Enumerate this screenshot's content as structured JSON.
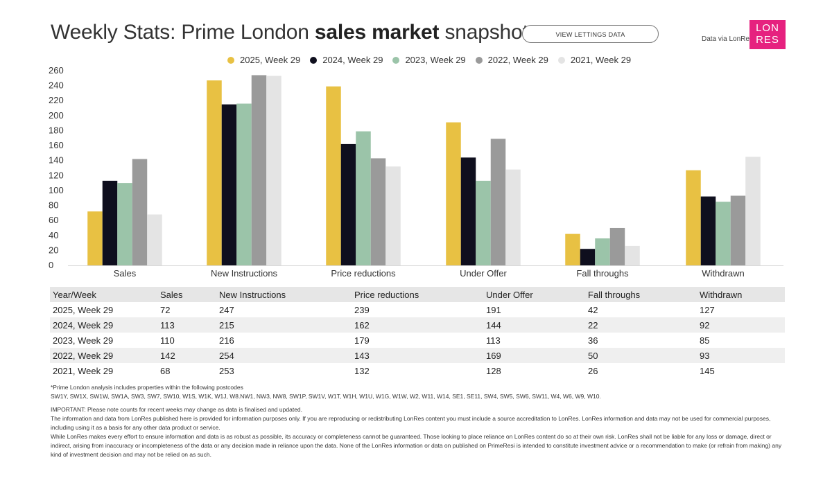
{
  "header": {
    "title_pre": "Weekly Stats: Prime London ",
    "title_bold": "sales market",
    "title_post": " snapshot",
    "view_button": "VIEW LETTINGS DATA",
    "data_via": "Data via LonRes",
    "logo_line1": "LON",
    "logo_line2": "RES"
  },
  "colors": {
    "brand": "#e6217f"
  },
  "chart_data": {
    "type": "bar",
    "categories": [
      "Sales",
      "New Instructions",
      "Price reductions",
      "Under Offer",
      "Fall throughs",
      "Withdrawn"
    ],
    "series": [
      {
        "name": "2025, Week 29",
        "color": "#e8c143",
        "values": [
          72,
          247,
          239,
          191,
          42,
          127
        ]
      },
      {
        "name": "2024, Week 29",
        "color": "#0f0f1e",
        "values": [
          113,
          215,
          162,
          144,
          22,
          92
        ]
      },
      {
        "name": "2023, Week 29",
        "color": "#9bc4a9",
        "values": [
          110,
          216,
          179,
          113,
          36,
          85
        ]
      },
      {
        "name": "2022, Week 29",
        "color": "#9a9a9a",
        "values": [
          142,
          254,
          143,
          169,
          50,
          93
        ]
      },
      {
        "name": "2021, Week 29",
        "color": "#e4e4e4",
        "values": [
          68,
          253,
          132,
          128,
          26,
          145
        ]
      }
    ],
    "yticks": [
      0,
      20,
      40,
      60,
      80,
      100,
      120,
      140,
      160,
      180,
      200,
      220,
      240,
      260
    ],
    "ylim": [
      0,
      260
    ],
    "grid": false,
    "legend": "top"
  },
  "table": {
    "headers": [
      "Year/Week",
      "Sales",
      "New Instructions",
      "Price reductions",
      "Under Offer",
      "Fall throughs",
      "Withdrawn"
    ],
    "rows": [
      [
        "2025, Week 29",
        "72",
        "247",
        "239",
        "191",
        "42",
        "127"
      ],
      [
        "2024, Week 29",
        "113",
        "215",
        "162",
        "144",
        "22",
        "92"
      ],
      [
        "2023, Week 29",
        "110",
        "216",
        "179",
        "113",
        "36",
        "85"
      ],
      [
        "2022, Week 29",
        "142",
        "254",
        "143",
        "169",
        "50",
        "93"
      ],
      [
        "2021, Week 29",
        "68",
        "253",
        "132",
        "128",
        "26",
        "145"
      ]
    ]
  },
  "notes": {
    "postcode_intro": "*Prime London analysis includes properties within the following postcodes",
    "postcodes": "SW1Y, SW1X, SW1W, SW1A, SW3, SW7, SW10, W1S, W1K, W1J, W8.NW1, NW3, NW8, SW1P, SW1V, W1T, W1H, W1U, W1G, W1W, W2, W11, W14, SE1, SE11, SW4, SW5, SW6, SW11, W4, W6, W9, W10.",
    "important": "IMPORTANT: Please note counts for recent weeks may change as data is finalised and updated.",
    "info": "The information and data from LonRes published here is provided for information purposes only. If you are reproducing or redistributing LonRes content you must include a source accreditation to LonRes. LonRes information and data may not be used for commercial purposes, including using it as a basis for any other data product or service.",
    "disclaimer": "While LonRes makes every effort to ensure information and data is as robust as possible, its accuracy or completeness cannot be guaranteed. Those looking to place reliance on LonRes content do so at their own risk. LonRes shall not be liable for any loss or damage, direct or indirect, arising from inaccuracy or incompleteness of the data or any decision made in reliance upon the data. None of the LonRes information or data on published on PrimeResi is intended to constitute investment advice or a recommendation to make (or refrain from making) any kind of investment decision and may not be relied on as such."
  }
}
